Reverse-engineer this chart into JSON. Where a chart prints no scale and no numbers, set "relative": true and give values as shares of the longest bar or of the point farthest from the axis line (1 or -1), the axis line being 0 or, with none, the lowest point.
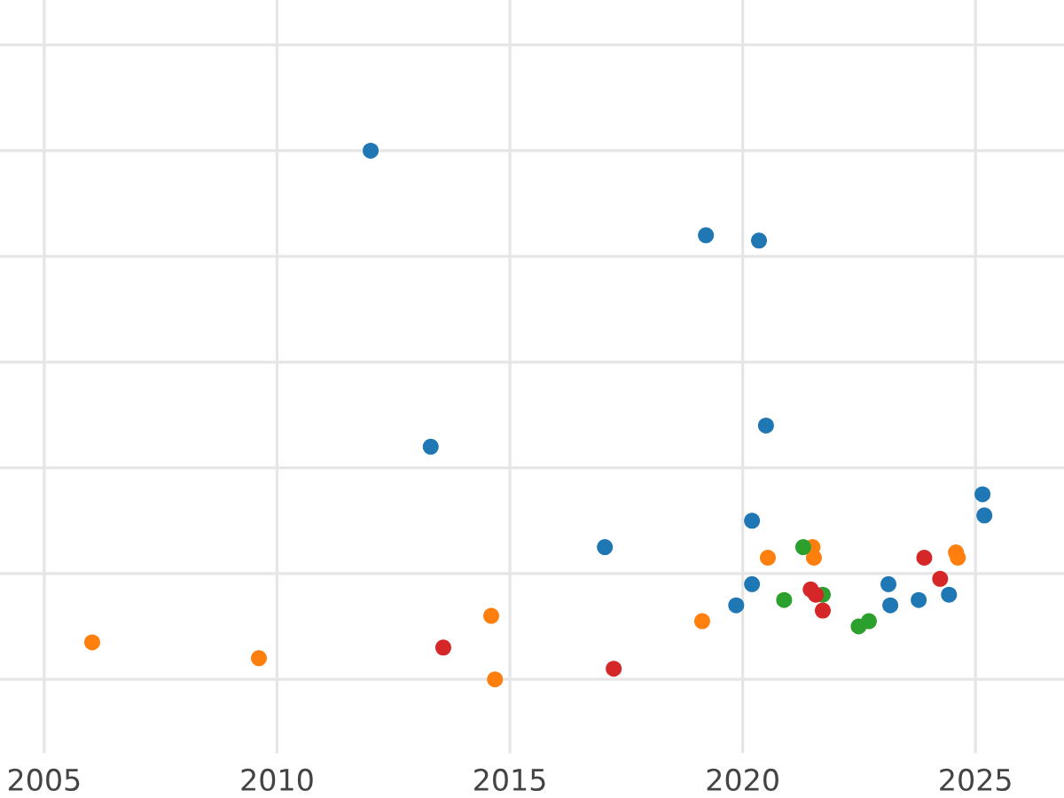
{
  "chart_data": {
    "type": "scatter",
    "relative": true,
    "marker": "circle",
    "grid": true,
    "legend": false,
    "xlim": [
      2004.05,
      2026.9
    ],
    "xticks": [
      2005,
      2010,
      2015,
      2020,
      2025
    ],
    "series": [
      {
        "color": "#1f77b4",
        "x": [
          2012.01,
          2019.21,
          2020.35,
          2013.3,
          2020.5,
          2025.15,
          2025.19,
          2017.04,
          2020.2,
          2019.86,
          2020.2,
          2023.13,
          2023.17,
          2023.78,
          2024.43
        ],
        "values": [
          1.0,
          0.84,
          0.83,
          0.44,
          0.48,
          0.35,
          0.31,
          0.25,
          0.3,
          0.14,
          0.18,
          0.18,
          0.14,
          0.15,
          0.16
        ]
      },
      {
        "color": "#ff7f0e",
        "x": [
          2006.03,
          2009.61,
          2014.6,
          2014.68,
          2019.13,
          2020.54,
          2021.5,
          2021.53,
          2024.58,
          2024.62
        ],
        "values": [
          0.07,
          0.04,
          0.12,
          0.0,
          0.11,
          0.23,
          0.25,
          0.23,
          0.24,
          0.23
        ]
      },
      {
        "color": "#2ca02c",
        "x": [
          2021.3,
          2021.72,
          2020.89,
          2022.49,
          2022.71
        ],
        "values": [
          0.25,
          0.16,
          0.15,
          0.1,
          0.11
        ]
      },
      {
        "color": "#d62728",
        "x": [
          2013.57,
          2017.23,
          2021.46,
          2021.57,
          2021.72,
          2023.9,
          2024.24
        ],
        "values": [
          0.06,
          0.02,
          0.17,
          0.16,
          0.13,
          0.23,
          0.19
        ]
      }
    ]
  }
}
